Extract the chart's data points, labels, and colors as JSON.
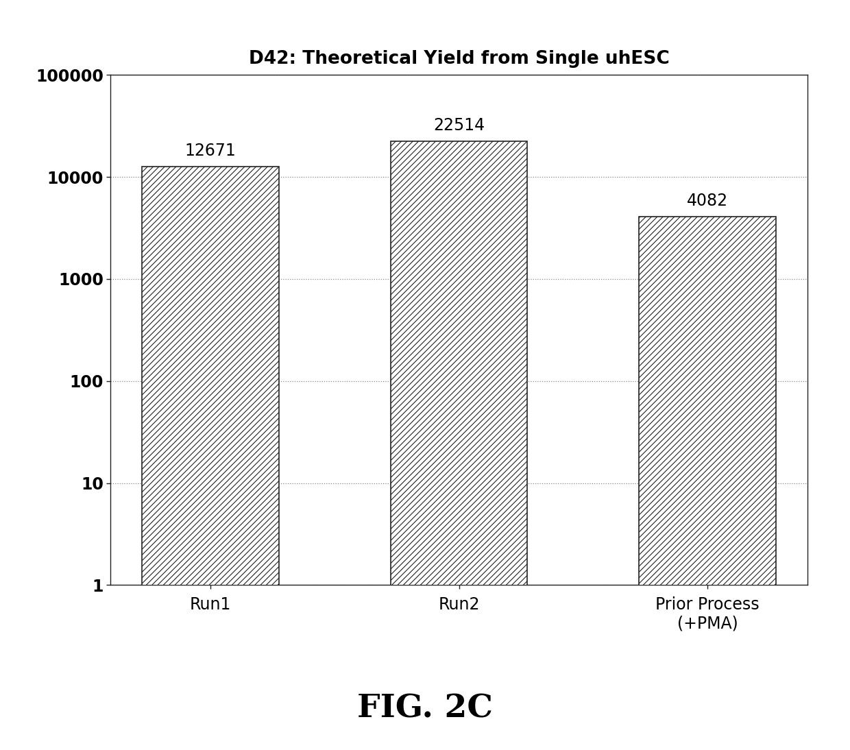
{
  "title": "D42: Theoretical Yield from Single uhESC",
  "categories": [
    "Run1",
    "Run2",
    "Prior Process\n(+PMA)"
  ],
  "values": [
    12671,
    22514,
    4082
  ],
  "bar_labels": [
    "12671",
    "22514",
    "4082"
  ],
  "ylim": [
    1,
    100000
  ],
  "bar_color": "white",
  "hatch_pattern": "////",
  "bar_width": 0.55,
  "bar_edge_color": "#222222",
  "title_fontsize": 19,
  "tick_fontsize": 17,
  "annotation_fontsize": 17,
  "fig_caption": "FIG. 2C",
  "fig_caption_fontsize": 34,
  "background_color": "#ffffff",
  "grid_color": "#888888",
  "grid_linestyle": ":",
  "hatch_color": "#444444"
}
